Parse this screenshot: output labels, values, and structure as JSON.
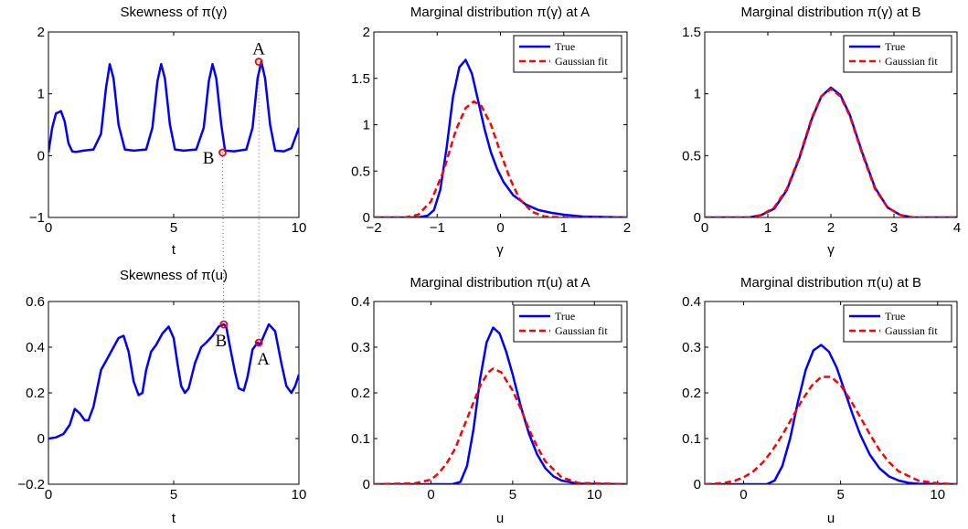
{
  "chart_data": [
    {
      "type": "line",
      "title": "Skewness of π(γ)",
      "xlabel": "t",
      "ylabel": "",
      "xlim": [
        0,
        10
      ],
      "ylim": [
        -1,
        2
      ],
      "xticks": [
        "0",
        "5",
        "10"
      ],
      "xtick_values": [
        0,
        5,
        10
      ],
      "yticks": [
        "−1",
        "0",
        "1",
        "2"
      ],
      "ytick_values": [
        -1,
        0,
        1,
        2
      ],
      "series": [
        {
          "color": "#0000ff",
          "x": [
            0,
            0.15,
            0.3,
            0.5,
            0.65,
            0.8,
            0.95,
            1.1,
            1.4,
            1.8,
            2.1,
            2.3,
            2.45,
            2.6,
            2.8,
            3.05,
            3.4,
            3.9,
            4.15,
            4.35,
            4.5,
            4.65,
            4.85,
            5.05,
            5.4,
            5.9,
            6.2,
            6.4,
            6.55,
            6.7,
            6.9,
            7.05,
            7.4,
            7.9,
            8.15,
            8.35,
            8.5,
            8.65,
            8.85,
            9.05,
            9.4,
            9.7,
            10
          ],
          "y": [
            0.05,
            0.45,
            0.68,
            0.72,
            0.55,
            0.2,
            0.07,
            0.06,
            0.08,
            0.1,
            0.35,
            1.1,
            1.48,
            1.25,
            0.5,
            0.1,
            0.08,
            0.1,
            0.45,
            1.2,
            1.48,
            1.25,
            0.5,
            0.1,
            0.08,
            0.1,
            0.45,
            1.2,
            1.48,
            1.25,
            0.5,
            0.08,
            0.07,
            0.1,
            0.45,
            1.25,
            1.52,
            1.25,
            0.5,
            0.08,
            0.07,
            0.12,
            0.45
          ]
        }
      ],
      "markers": [
        {
          "label": "A",
          "x": 8.4,
          "y": 1.52,
          "label_pos": "above"
        },
        {
          "label": "B",
          "x": 6.95,
          "y": 0.05,
          "label_pos": "left"
        }
      ]
    },
    {
      "type": "line",
      "title": "Marginal distribution π(γ) at A",
      "xlabel": "γ",
      "ylabel": "",
      "xlim": [
        -2,
        2
      ],
      "ylim": [
        0,
        2
      ],
      "xticks": [
        "−2",
        "−1",
        "0",
        "1",
        "2"
      ],
      "xtick_values": [
        -2,
        -1,
        0,
        1,
        2
      ],
      "yticks": [
        "0",
        "0.5",
        "1",
        "1.5",
        "2"
      ],
      "ytick_values": [
        0,
        0.5,
        1,
        1.5,
        2
      ],
      "legend": {
        "position": "top-right",
        "entries": [
          "True",
          "Gaussian fit"
        ]
      },
      "series": [
        {
          "name": "True",
          "color": "#0000ff",
          "dash": false,
          "x": [
            -2,
            -1.3,
            -1.15,
            -1.05,
            -0.95,
            -0.85,
            -0.75,
            -0.65,
            -0.55,
            -0.45,
            -0.35,
            -0.25,
            -0.15,
            -0.05,
            0.05,
            0.2,
            0.4,
            0.6,
            0.8,
            1.0,
            1.3,
            2
          ],
          "y": [
            0,
            0,
            0.02,
            0.08,
            0.3,
            0.75,
            1.3,
            1.62,
            1.7,
            1.55,
            1.25,
            0.95,
            0.7,
            0.52,
            0.38,
            0.24,
            0.14,
            0.08,
            0.05,
            0.03,
            0.01,
            0
          ]
        },
        {
          "name": "Gaussian fit",
          "color": "#ff0000",
          "dash": true,
          "x": [
            -2,
            -1.5,
            -1.3,
            -1.1,
            -0.9,
            -0.7,
            -0.55,
            -0.42,
            -0.3,
            -0.15,
            0,
            0.15,
            0.3,
            0.5,
            0.7,
            1.0,
            2
          ],
          "y": [
            0,
            0,
            0.03,
            0.17,
            0.5,
            0.95,
            1.18,
            1.25,
            1.2,
            1.0,
            0.7,
            0.42,
            0.2,
            0.06,
            0.01,
            0,
            0
          ]
        }
      ]
    },
    {
      "type": "line",
      "title": "Marginal distribution π(γ) at B",
      "xlabel": "γ",
      "ylabel": "",
      "xlim": [
        0,
        4
      ],
      "ylim": [
        0,
        1.5
      ],
      "xticks": [
        "0",
        "1",
        "2",
        "3",
        "4"
      ],
      "xtick_values": [
        0,
        1,
        2,
        3,
        4
      ],
      "yticks": [
        "0",
        "0.5",
        "1",
        "1.5"
      ],
      "ytick_values": [
        0,
        0.5,
        1,
        1.5
      ],
      "legend": {
        "position": "top-right",
        "entries": [
          "True",
          "Gaussian fit"
        ]
      },
      "series": [
        {
          "name": "True",
          "color": "#0000ff",
          "dash": false,
          "x": [
            0,
            0.7,
            0.9,
            1.1,
            1.3,
            1.5,
            1.7,
            1.85,
            2.0,
            2.15,
            2.3,
            2.5,
            2.7,
            2.9,
            3.1,
            3.3,
            4
          ],
          "y": [
            0,
            0,
            0.02,
            0.07,
            0.22,
            0.48,
            0.8,
            0.98,
            1.05,
            0.99,
            0.83,
            0.52,
            0.24,
            0.08,
            0.02,
            0,
            0
          ]
        },
        {
          "name": "Gaussian fit",
          "color": "#ff0000",
          "dash": true,
          "x": [
            0,
            0.7,
            0.9,
            1.1,
            1.3,
            1.5,
            1.7,
            1.85,
            2.0,
            2.15,
            2.3,
            2.5,
            2.7,
            2.9,
            3.1,
            3.3,
            4
          ],
          "y": [
            0,
            0,
            0.02,
            0.08,
            0.23,
            0.49,
            0.81,
            0.98,
            1.04,
            0.98,
            0.82,
            0.51,
            0.23,
            0.08,
            0.02,
            0,
            0
          ]
        }
      ]
    },
    {
      "type": "line",
      "title": "Skewness of π(u)",
      "xlabel": "t",
      "ylabel": "",
      "xlim": [
        0,
        10
      ],
      "ylim": [
        -0.2,
        0.6
      ],
      "xticks": [
        "0",
        "5",
        "10"
      ],
      "xtick_values": [
        0,
        5,
        10
      ],
      "yticks": [
        "−0.2",
        "0",
        "0.2",
        "0.4",
        "0.6"
      ],
      "ytick_values": [
        -0.2,
        0,
        0.2,
        0.4,
        0.6
      ],
      "series": [
        {
          "color": "#0000ff",
          "x": [
            0,
            0.3,
            0.6,
            0.85,
            1.05,
            1.25,
            1.45,
            1.6,
            1.8,
            2.1,
            2.4,
            2.6,
            2.8,
            3.0,
            3.2,
            3.4,
            3.6,
            3.75,
            3.9,
            4.1,
            4.3,
            4.55,
            4.8,
            5.0,
            5.15,
            5.3,
            5.45,
            5.6,
            5.85,
            6.1,
            6.3,
            6.55,
            6.8,
            7.0,
            7.1,
            7.25,
            7.45,
            7.6,
            7.8,
            7.95,
            8.15,
            8.35,
            8.45,
            8.6,
            8.8,
            9.05,
            9.3,
            9.5,
            9.7,
            9.85,
            10
          ],
          "y": [
            0,
            0.005,
            0.02,
            0.06,
            0.13,
            0.11,
            0.08,
            0.08,
            0.14,
            0.3,
            0.36,
            0.4,
            0.44,
            0.45,
            0.38,
            0.25,
            0.19,
            0.2,
            0.3,
            0.38,
            0.41,
            0.46,
            0.49,
            0.44,
            0.33,
            0.23,
            0.2,
            0.22,
            0.33,
            0.4,
            0.42,
            0.45,
            0.49,
            0.5,
            0.49,
            0.4,
            0.29,
            0.22,
            0.21,
            0.27,
            0.39,
            0.42,
            0.41,
            0.45,
            0.5,
            0.47,
            0.33,
            0.23,
            0.2,
            0.23,
            0.28
          ]
        }
      ],
      "markers": [
        {
          "label": "B",
          "x": 7.0,
          "y": 0.5,
          "label_pos": "below"
        },
        {
          "label": "A",
          "x": 8.4,
          "y": 0.42,
          "label_pos": "below"
        }
      ]
    },
    {
      "type": "line",
      "title": "Marginal distribution π(u) at A",
      "xlabel": "u",
      "ylabel": "",
      "xlim": [
        -3.5,
        12
      ],
      "ylim": [
        0,
        0.4
      ],
      "xticks": [
        "0",
        "5",
        "10"
      ],
      "xtick_values": [
        0,
        5,
        10
      ],
      "yticks": [
        "0",
        "0.1",
        "0.2",
        "0.3",
        "0.4"
      ],
      "ytick_values": [
        0,
        0.1,
        0.2,
        0.3,
        0.4
      ],
      "legend": {
        "position": "top-right",
        "entries": [
          "True",
          "Gaussian fit"
        ]
      },
      "series": [
        {
          "name": "True",
          "color": "#0000ff",
          "dash": false,
          "x": [
            -3.5,
            1.3,
            1.8,
            2.2,
            2.6,
            3.0,
            3.4,
            3.8,
            4.2,
            4.6,
            5.0,
            5.5,
            6.0,
            6.5,
            7.0,
            7.5,
            8.0,
            9.0,
            12
          ],
          "y": [
            0,
            0,
            0.005,
            0.04,
            0.12,
            0.23,
            0.31,
            0.343,
            0.33,
            0.29,
            0.24,
            0.17,
            0.11,
            0.065,
            0.035,
            0.017,
            0.008,
            0.001,
            0
          ]
        },
        {
          "name": "Gaussian fit",
          "color": "#ff0000",
          "dash": true,
          "x": [
            -3.5,
            -1.0,
            0,
            0.5,
            1.0,
            1.5,
            2.0,
            2.5,
            3.0,
            3.5,
            3.8,
            4.3,
            5.0,
            5.5,
            6.0,
            6.5,
            7.0,
            8.0,
            9.0,
            12
          ],
          "y": [
            0,
            0.002,
            0.01,
            0.025,
            0.048,
            0.08,
            0.125,
            0.17,
            0.215,
            0.245,
            0.253,
            0.245,
            0.205,
            0.165,
            0.12,
            0.082,
            0.05,
            0.015,
            0.003,
            0
          ]
        }
      ]
    },
    {
      "type": "line",
      "title": "Marginal distribution π(u) at B",
      "xlabel": "u",
      "ylabel": "",
      "xlim": [
        -2,
        11
      ],
      "ylim": [
        0,
        0.4
      ],
      "xticks": [
        "0",
        "5",
        "10"
      ],
      "xtick_values": [
        0,
        5,
        10
      ],
      "yticks": [
        "0",
        "0.1",
        "0.2",
        "0.3",
        "0.4"
      ],
      "ytick_values": [
        0,
        0.1,
        0.2,
        0.3,
        0.4
      ],
      "legend": {
        "position": "top-right",
        "entries": [
          "True",
          "Gaussian fit"
        ]
      },
      "series": [
        {
          "name": "True",
          "color": "#0000ff",
          "dash": false,
          "x": [
            -2,
            1.2,
            1.6,
            2.0,
            2.4,
            2.8,
            3.2,
            3.6,
            4.0,
            4.4,
            4.8,
            5.2,
            5.6,
            6.0,
            6.5,
            7.0,
            7.5,
            8.0,
            8.5,
            9.0,
            11
          ],
          "y": [
            0,
            0,
            0.008,
            0.04,
            0.1,
            0.18,
            0.25,
            0.293,
            0.305,
            0.29,
            0.255,
            0.205,
            0.155,
            0.11,
            0.065,
            0.035,
            0.017,
            0.008,
            0.003,
            0.001,
            0
          ]
        },
        {
          "name": "Gaussian fit",
          "color": "#ff0000",
          "dash": true,
          "x": [
            -2,
            -1.5,
            -1.0,
            -0.5,
            0,
            0.5,
            1.0,
            1.5,
            2.0,
            2.5,
            3.0,
            3.5,
            4.0,
            4.5,
            5.0,
            5.5,
            6.0,
            6.5,
            7.0,
            7.5,
            8.0,
            9.0,
            10.0,
            11
          ],
          "y": [
            0,
            0.001,
            0.003,
            0.007,
            0.015,
            0.028,
            0.048,
            0.075,
            0.108,
            0.145,
            0.183,
            0.215,
            0.235,
            0.235,
            0.217,
            0.185,
            0.148,
            0.11,
            0.075,
            0.048,
            0.028,
            0.008,
            0.002,
            0
          ]
        }
      ]
    }
  ]
}
